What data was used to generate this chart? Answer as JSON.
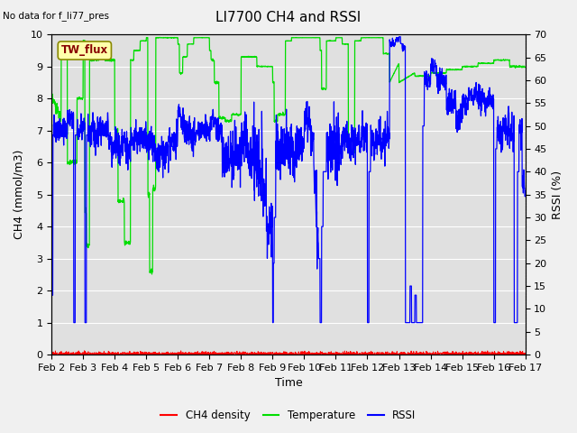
{
  "title": "LI7700 CH4 and RSSI",
  "top_left_text": "No data for f_li77_pres",
  "annotation_box": "TW_flux",
  "xlabel": "Time",
  "ylabel_left": "CH4 (mmol/m3)",
  "ylabel_right": "RSSI (%)",
  "ylim_left": [
    0.0,
    10.0
  ],
  "ylim_right": [
    0,
    70
  ],
  "yticks_left": [
    0.0,
    1.0,
    2.0,
    3.0,
    4.0,
    5.0,
    6.0,
    7.0,
    8.0,
    9.0,
    10.0
  ],
  "yticks_right": [
    0,
    5,
    10,
    15,
    20,
    25,
    30,
    35,
    40,
    45,
    50,
    55,
    60,
    65,
    70
  ],
  "xtick_labels": [
    "Feb 2",
    "Feb 3",
    "Feb 4",
    "Feb 5",
    "Feb 6",
    "Feb 7",
    "Feb 8",
    "Feb 9",
    "Feb 10",
    "Feb 11",
    "Feb 12",
    "Feb 13",
    "Feb 14",
    "Feb 15",
    "Feb 16",
    "Feb 17"
  ],
  "color_ch4": "#ff0000",
  "color_temp": "#00dd00",
  "color_rssi": "#0000ff",
  "bg_color": "#e0e0e0",
  "fig_color": "#f0f0f0",
  "legend_labels": [
    "CH4 density",
    "Temperature",
    "RSSI"
  ],
  "title_fontsize": 11,
  "label_fontsize": 9,
  "tick_fontsize": 8,
  "annot_color": "#880000",
  "annot_bg": "#ffffaa",
  "annot_edge": "#888800"
}
